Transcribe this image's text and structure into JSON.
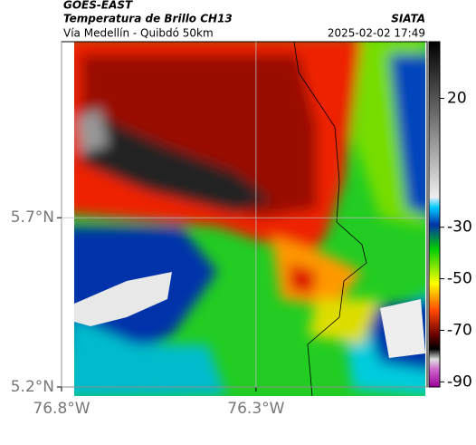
{
  "header": {
    "satellite": "GOES-EAST",
    "title": "Temperatura de Brillo CH13",
    "agency": "SIATA",
    "region": "Vía Medellín - Quibdó 50km",
    "timestamp": "2025-02-02 17:49"
  },
  "map": {
    "xlim": [
      -76.8,
      -75.86
    ],
    "ylim": [
      5.2,
      6.22
    ],
    "xticks": [
      {
        "value": -76.8,
        "label": "76.8°W"
      },
      {
        "value": -76.3,
        "label": "76.3°W"
      }
    ],
    "yticks": [
      {
        "value": 5.2,
        "label": "5.2°N"
      },
      {
        "value": 5.7,
        "label": "5.7°N"
      }
    ]
  },
  "colorbar": {
    "lim": [
      42,
      -92
    ],
    "ticks": [
      20,
      -30,
      -50,
      -70,
      -90
    ]
  }
}
